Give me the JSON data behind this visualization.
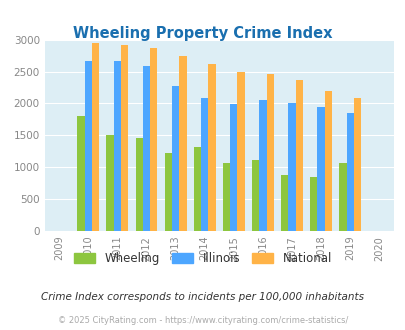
{
  "title": "Wheeling Property Crime Index",
  "plot_years": [
    2010,
    2011,
    2012,
    2013,
    2014,
    2015,
    2016,
    2017,
    2018,
    2019
  ],
  "wheeling": [
    1800,
    1500,
    1450,
    1220,
    1310,
    1060,
    1115,
    870,
    840,
    1060
  ],
  "illinois": [
    2670,
    2670,
    2590,
    2280,
    2080,
    1995,
    2050,
    2010,
    1940,
    1850
  ],
  "national": [
    2940,
    2915,
    2865,
    2745,
    2610,
    2500,
    2460,
    2360,
    2190,
    2090
  ],
  "wheeling_color": "#8dc63f",
  "illinois_color": "#4da6ff",
  "national_color": "#ffb347",
  "bg_color": "#ddeef5",
  "title_color": "#1a6faf",
  "ylim": [
    0,
    3000
  ],
  "yticks": [
    0,
    500,
    1000,
    1500,
    2000,
    2500,
    3000
  ],
  "all_xtick_labels": [
    "2009",
    "2010",
    "2011",
    "2012",
    "2013",
    "2014",
    "2015",
    "2016",
    "2017",
    "2018",
    "2019",
    "2020"
  ],
  "footnote1": "Crime Index corresponds to incidents per 100,000 inhabitants",
  "footnote2": "© 2025 CityRating.com - https://www.cityrating.com/crime-statistics/",
  "legend_labels": [
    "Wheeling",
    "Illinois",
    "National"
  ],
  "bar_width": 0.25
}
